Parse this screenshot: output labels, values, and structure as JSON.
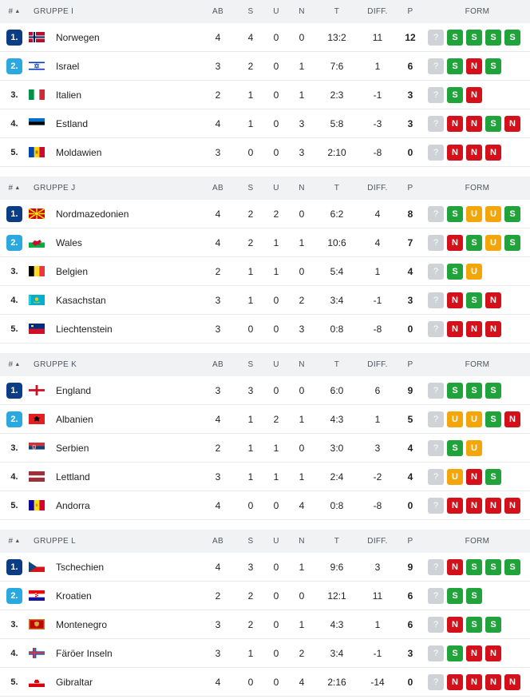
{
  "headers": {
    "rank": "#",
    "sort_arrow": "▲",
    "ab": "AB",
    "s": "S",
    "u": "U",
    "n": "N",
    "t": "T",
    "diff": "DIFF.",
    "p": "P",
    "form": "FORM"
  },
  "colors": {
    "rank_1": "#0b3d84",
    "rank_2": "#2aa8e0",
    "form_S": "#21a33b",
    "form_N": "#d4111a",
    "form_U": "#f2a60a",
    "form_pending": "#cfd2d6"
  },
  "groups": [
    {
      "name": "GRUPPE I",
      "rows": [
        {
          "rank": "1.",
          "team": "Norwegen",
          "flag": "norway",
          "ab": "4",
          "s": "4",
          "u": "0",
          "n": "0",
          "t": "13:2",
          "diff": "11",
          "p": "12",
          "form": [
            "?",
            "S",
            "S",
            "S",
            "S"
          ]
        },
        {
          "rank": "2.",
          "team": "Israel",
          "flag": "israel",
          "ab": "3",
          "s": "2",
          "u": "0",
          "n": "1",
          "t": "7:6",
          "diff": "1",
          "p": "6",
          "form": [
            "?",
            "S",
            "N",
            "S"
          ]
        },
        {
          "rank": "3.",
          "team": "Italien",
          "flag": "italy",
          "ab": "2",
          "s": "1",
          "u": "0",
          "n": "1",
          "t": "2:3",
          "diff": "-1",
          "p": "3",
          "form": [
            "?",
            "S",
            "N"
          ]
        },
        {
          "rank": "4.",
          "team": "Estland",
          "flag": "estonia",
          "ab": "4",
          "s": "1",
          "u": "0",
          "n": "3",
          "t": "5:8",
          "diff": "-3",
          "p": "3",
          "form": [
            "?",
            "N",
            "N",
            "S",
            "N"
          ]
        },
        {
          "rank": "5.",
          "team": "Moldawien",
          "flag": "moldova",
          "ab": "3",
          "s": "0",
          "u": "0",
          "n": "3",
          "t": "2:10",
          "diff": "-8",
          "p": "0",
          "form": [
            "?",
            "N",
            "N",
            "N"
          ]
        }
      ]
    },
    {
      "name": "GRUPPE J",
      "rows": [
        {
          "rank": "1.",
          "team": "Nordmazedonien",
          "flag": "north-macedonia",
          "ab": "4",
          "s": "2",
          "u": "2",
          "n": "0",
          "t": "6:2",
          "diff": "4",
          "p": "8",
          "form": [
            "?",
            "S",
            "U",
            "U",
            "S"
          ]
        },
        {
          "rank": "2.",
          "team": "Wales",
          "flag": "wales",
          "ab": "4",
          "s": "2",
          "u": "1",
          "n": "1",
          "t": "10:6",
          "diff": "4",
          "p": "7",
          "form": [
            "?",
            "N",
            "S",
            "U",
            "S"
          ]
        },
        {
          "rank": "3.",
          "team": "Belgien",
          "flag": "belgium",
          "ab": "2",
          "s": "1",
          "u": "1",
          "n": "0",
          "t": "5:4",
          "diff": "1",
          "p": "4",
          "form": [
            "?",
            "S",
            "U"
          ]
        },
        {
          "rank": "4.",
          "team": "Kasachstan",
          "flag": "kazakhstan",
          "ab": "3",
          "s": "1",
          "u": "0",
          "n": "2",
          "t": "3:4",
          "diff": "-1",
          "p": "3",
          "form": [
            "?",
            "N",
            "S",
            "N"
          ]
        },
        {
          "rank": "5.",
          "team": "Liechtenstein",
          "flag": "liechtenstein",
          "ab": "3",
          "s": "0",
          "u": "0",
          "n": "3",
          "t": "0:8",
          "diff": "-8",
          "p": "0",
          "form": [
            "?",
            "N",
            "N",
            "N"
          ]
        }
      ]
    },
    {
      "name": "GRUPPE K",
      "rows": [
        {
          "rank": "1.",
          "team": "England",
          "flag": "england",
          "ab": "3",
          "s": "3",
          "u": "0",
          "n": "0",
          "t": "6:0",
          "diff": "6",
          "p": "9",
          "form": [
            "?",
            "S",
            "S",
            "S"
          ]
        },
        {
          "rank": "2.",
          "team": "Albanien",
          "flag": "albania",
          "ab": "4",
          "s": "1",
          "u": "2",
          "n": "1",
          "t": "4:3",
          "diff": "1",
          "p": "5",
          "form": [
            "?",
            "U",
            "U",
            "S",
            "N"
          ]
        },
        {
          "rank": "3.",
          "team": "Serbien",
          "flag": "serbia",
          "ab": "2",
          "s": "1",
          "u": "1",
          "n": "0",
          "t": "3:0",
          "diff": "3",
          "p": "4",
          "form": [
            "?",
            "S",
            "U"
          ]
        },
        {
          "rank": "4.",
          "team": "Lettland",
          "flag": "latvia",
          "ab": "3",
          "s": "1",
          "u": "1",
          "n": "1",
          "t": "2:4",
          "diff": "-2",
          "p": "4",
          "form": [
            "?",
            "U",
            "N",
            "S"
          ]
        },
        {
          "rank": "5.",
          "team": "Andorra",
          "flag": "andorra",
          "ab": "4",
          "s": "0",
          "u": "0",
          "n": "4",
          "t": "0:8",
          "diff": "-8",
          "p": "0",
          "form": [
            "?",
            "N",
            "N",
            "N",
            "N"
          ]
        }
      ]
    },
    {
      "name": "GRUPPE L",
      "rows": [
        {
          "rank": "1.",
          "team": "Tschechien",
          "flag": "czechia",
          "ab": "4",
          "s": "3",
          "u": "0",
          "n": "1",
          "t": "9:6",
          "diff": "3",
          "p": "9",
          "form": [
            "?",
            "N",
            "S",
            "S",
            "S"
          ]
        },
        {
          "rank": "2.",
          "team": "Kroatien",
          "flag": "croatia",
          "ab": "2",
          "s": "2",
          "u": "0",
          "n": "0",
          "t": "12:1",
          "diff": "11",
          "p": "6",
          "form": [
            "?",
            "S",
            "S"
          ]
        },
        {
          "rank": "3.",
          "team": "Montenegro",
          "flag": "montenegro",
          "ab": "3",
          "s": "2",
          "u": "0",
          "n": "1",
          "t": "4:3",
          "diff": "1",
          "p": "6",
          "form": [
            "?",
            "N",
            "S",
            "S"
          ]
        },
        {
          "rank": "4.",
          "team": "Färöer Inseln",
          "flag": "faroe-islands",
          "ab": "3",
          "s": "1",
          "u": "0",
          "n": "2",
          "t": "3:4",
          "diff": "-1",
          "p": "3",
          "form": [
            "?",
            "S",
            "N",
            "N"
          ]
        },
        {
          "rank": "5.",
          "team": "Gibraltar",
          "flag": "gibraltar",
          "ab": "4",
          "s": "0",
          "u": "0",
          "n": "4",
          "t": "2:16",
          "diff": "-14",
          "p": "0",
          "form": [
            "?",
            "N",
            "N",
            "N",
            "N"
          ]
        }
      ]
    }
  ]
}
